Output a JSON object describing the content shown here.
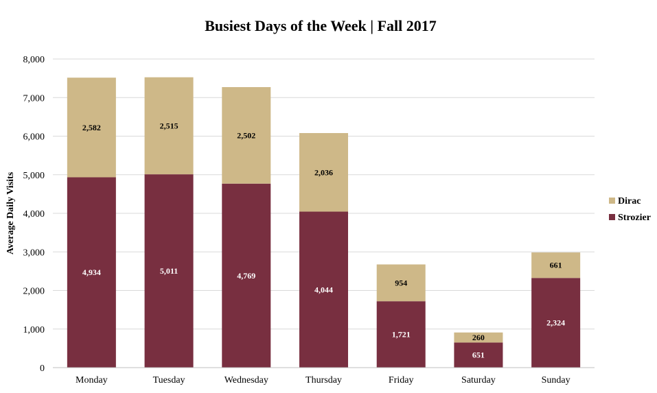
{
  "chart_data": {
    "type": "bar",
    "stacked": true,
    "title": "Busiest Days of the Week | Fall 2017",
    "ylabel": "Average Daily Visits",
    "xlabel": "",
    "categories": [
      "Monday",
      "Tuesday",
      "Wednesday",
      "Thursday",
      "Friday",
      "Saturday",
      "Sunday"
    ],
    "series": [
      {
        "name": "Strozier",
        "color": "#782f40",
        "label_color": "#ffffff",
        "values": [
          4934,
          5011,
          4769,
          4044,
          1721,
          651,
          2324
        ]
      },
      {
        "name": "Dirac",
        "color": "#ceb888",
        "label_color": "#000000",
        "values": [
          2582,
          2515,
          2502,
          2036,
          954,
          260,
          661
        ]
      }
    ],
    "ylim": [
      0,
      8000
    ],
    "y_ticks": [
      0,
      1000,
      2000,
      3000,
      4000,
      5000,
      6000,
      7000,
      8000
    ],
    "y_tick_labels": [
      "0",
      "1,000",
      "2,000",
      "3,000",
      "4,000",
      "5,000",
      "6,000",
      "7,000",
      "8,000"
    ],
    "grid": true,
    "legend_position": "right",
    "legend_order": [
      "Dirac",
      "Strozier"
    ]
  }
}
